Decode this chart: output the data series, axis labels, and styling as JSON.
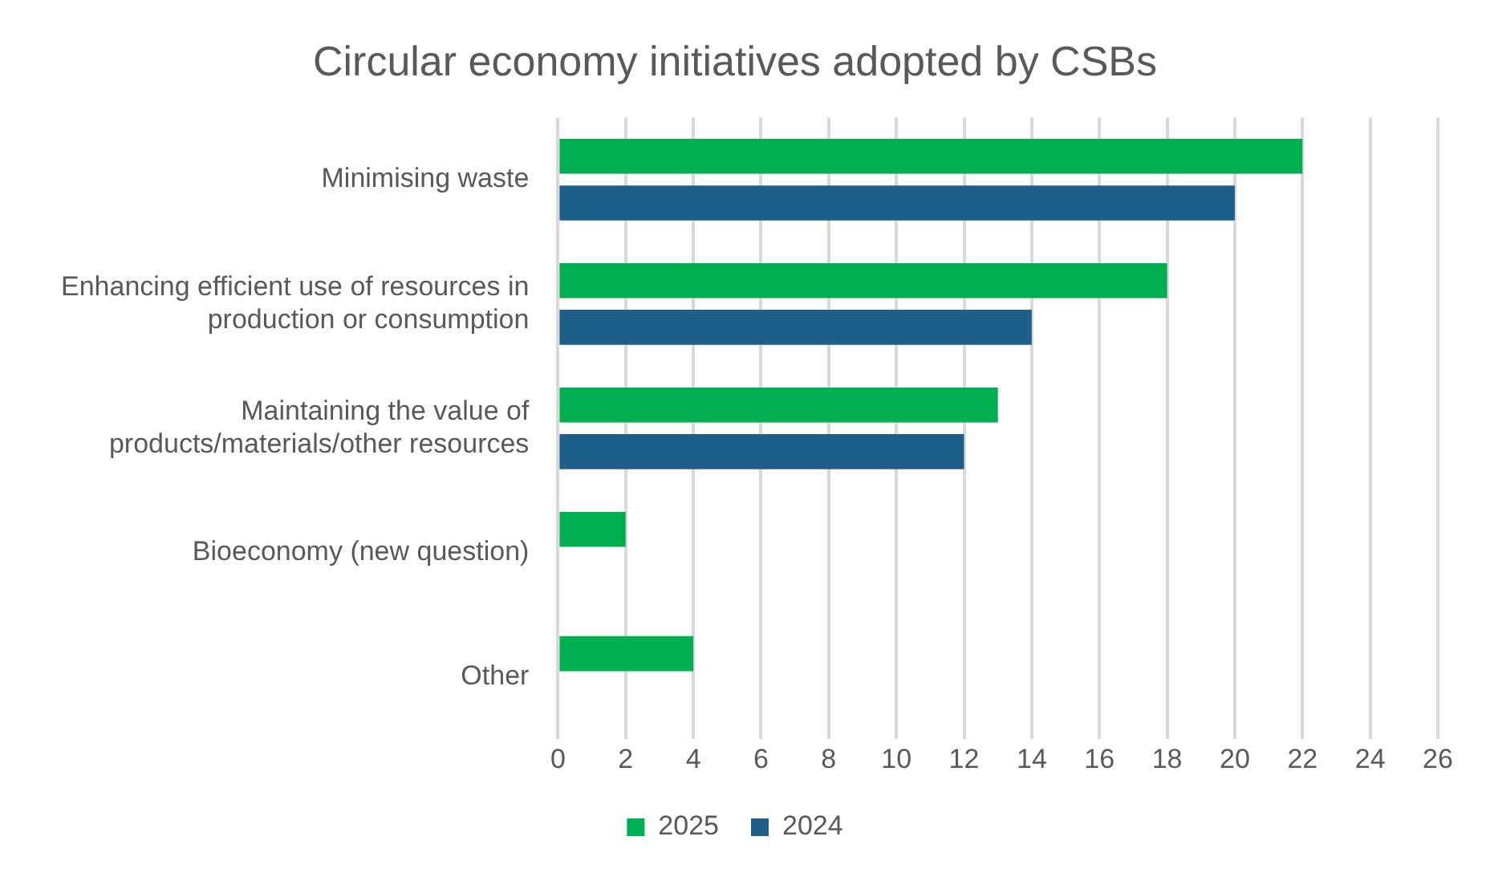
{
  "chart_data": {
    "type": "bar",
    "orientation": "horizontal",
    "title": "Circular economy initiatives adopted by CSBs",
    "categories": [
      "Minimising waste",
      "Enhancing efficient use of resources in production or consumption",
      "Maintaining the value of products/materials/other resources",
      "Bioeconomy (new question)",
      "Other"
    ],
    "series": [
      {
        "name": "2025",
        "color": "#00b050",
        "values": [
          22,
          18,
          13,
          2,
          4
        ]
      },
      {
        "name": "2024",
        "color": "#1f5f8b",
        "values": [
          20,
          14,
          12,
          null,
          null
        ]
      }
    ],
    "xlim": [
      0,
      26
    ],
    "xticks": [
      0,
      2,
      4,
      6,
      8,
      10,
      12,
      14,
      16,
      18,
      20,
      22,
      24,
      26
    ],
    "grid": "x",
    "legend": "bottom"
  }
}
